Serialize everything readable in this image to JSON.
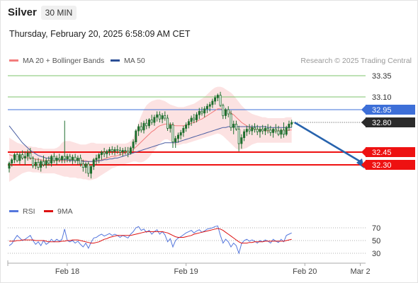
{
  "header": {
    "symbol": "Silver",
    "timeframe": "30 MIN",
    "datetime": "Thursday, February 20, 2025 6:58:09 AM CET"
  },
  "legend": {
    "ma20_bb": "MA 20 + Bollinger Bands",
    "ma50": "MA 50",
    "rsi": "RSI",
    "ma9": "9MA",
    "credit": "Research © 2025 Trading Central"
  },
  "colors": {
    "candle": "#1f6e2e",
    "ma20": "#f27c7c",
    "band_fill": "#fbd3d3",
    "ma50": "#4b5fa3",
    "level_green": "#7cc36b",
    "level_blue": "#3d6fd8",
    "level_red": "#ee1111",
    "last_price": "#2b2b2b",
    "arrow": "#2763ad",
    "rsi": "#5577dd",
    "rsi_ma": "#dd1111"
  },
  "chart_data": {
    "type": "candlestick",
    "price_axis": {
      "ylim": [
        32.0,
        33.5
      ],
      "ticks": [
        "33.35",
        "33.10",
        "32.95",
        "32.80",
        "32.45",
        "32.30"
      ]
    },
    "levels": [
      {
        "label": "33.35",
        "value": 33.35,
        "kind": "resistance"
      },
      {
        "label": "33.10",
        "value": 33.1,
        "kind": "resistance"
      },
      {
        "label": "32.95",
        "value": 32.95,
        "kind": "pivot"
      },
      {
        "label": "32.80",
        "value": 32.8,
        "kind": "last"
      },
      {
        "label": "32.45",
        "value": 32.45,
        "kind": "support"
      },
      {
        "label": "32.30",
        "value": 32.3,
        "kind": "support"
      }
    ],
    "x_labels": [
      "Feb 18",
      "Feb 19",
      "Feb 20",
      "Mar 2"
    ],
    "x_label_index": [
      22,
      67,
      112,
      133
    ],
    "candles": [
      [
        32.26,
        32.34,
        32.21,
        32.32
      ],
      [
        32.32,
        32.38,
        32.28,
        32.36
      ],
      [
        32.36,
        32.44,
        32.32,
        32.42
      ],
      [
        32.42,
        32.45,
        32.33,
        32.35
      ],
      [
        32.35,
        32.45,
        32.31,
        32.42
      ],
      [
        32.42,
        32.47,
        32.36,
        32.38
      ],
      [
        32.38,
        32.46,
        32.3,
        32.4
      ],
      [
        32.4,
        32.48,
        32.35,
        32.44
      ],
      [
        32.44,
        32.5,
        32.36,
        32.38
      ],
      [
        32.38,
        32.4,
        32.26,
        32.29
      ],
      [
        32.29,
        32.37,
        32.25,
        32.33
      ],
      [
        32.33,
        32.38,
        32.24,
        32.27
      ],
      [
        32.27,
        32.36,
        32.22,
        32.34
      ],
      [
        32.34,
        32.41,
        32.28,
        32.3
      ],
      [
        32.3,
        32.38,
        32.26,
        32.35
      ],
      [
        32.35,
        32.4,
        32.29,
        32.32
      ],
      [
        32.32,
        32.42,
        32.28,
        32.4
      ],
      [
        32.4,
        32.44,
        32.32,
        32.35
      ],
      [
        32.35,
        32.41,
        32.3,
        32.38
      ],
      [
        32.38,
        32.43,
        32.33,
        32.36
      ],
      [
        32.36,
        32.41,
        32.32,
        32.4
      ],
      [
        32.4,
        32.82,
        32.32,
        32.37
      ],
      [
        32.37,
        32.43,
        32.33,
        32.4
      ],
      [
        32.4,
        32.43,
        32.33,
        32.36
      ],
      [
        32.36,
        32.42,
        32.31,
        32.39
      ],
      [
        32.39,
        32.43,
        32.32,
        32.35
      ],
      [
        32.35,
        32.41,
        32.3,
        32.38
      ],
      [
        32.38,
        32.42,
        32.28,
        32.31
      ],
      [
        32.31,
        32.36,
        32.22,
        32.27
      ],
      [
        32.27,
        32.33,
        32.2,
        32.31
      ],
      [
        32.31,
        32.34,
        32.16,
        32.2
      ],
      [
        32.2,
        32.3,
        32.14,
        32.28
      ],
      [
        32.28,
        32.38,
        32.24,
        32.36
      ],
      [
        32.36,
        32.42,
        32.3,
        32.38
      ],
      [
        32.38,
        32.44,
        32.32,
        32.42
      ],
      [
        32.42,
        32.47,
        32.36,
        32.45
      ],
      [
        32.45,
        32.5,
        32.39,
        32.43
      ],
      [
        32.43,
        32.48,
        32.38,
        32.46
      ],
      [
        32.46,
        32.51,
        32.41,
        32.48
      ],
      [
        32.48,
        32.52,
        32.42,
        32.46
      ],
      [
        32.46,
        32.51,
        32.41,
        32.48
      ],
      [
        32.48,
        32.53,
        32.43,
        32.47
      ],
      [
        32.47,
        32.51,
        32.41,
        32.45
      ],
      [
        32.45,
        32.5,
        32.4,
        32.47
      ],
      [
        32.47,
        32.51,
        32.42,
        32.46
      ],
      [
        32.46,
        32.51,
        32.39,
        32.44
      ],
      [
        32.44,
        32.52,
        32.42,
        32.5
      ],
      [
        32.5,
        32.6,
        32.46,
        32.57
      ],
      [
        32.57,
        32.72,
        32.54,
        32.7
      ],
      [
        32.7,
        32.78,
        32.64,
        32.75
      ],
      [
        32.75,
        32.8,
        32.68,
        32.71
      ],
      [
        32.71,
        32.82,
        32.67,
        32.79
      ],
      [
        32.79,
        32.84,
        32.72,
        32.76
      ],
      [
        32.76,
        32.85,
        32.73,
        32.83
      ],
      [
        32.83,
        32.89,
        32.77,
        32.8
      ],
      [
        32.8,
        32.89,
        32.76,
        32.86
      ],
      [
        32.86,
        32.93,
        32.81,
        32.89
      ],
      [
        32.89,
        32.93,
        32.8,
        32.84
      ],
      [
        32.84,
        32.91,
        32.79,
        32.88
      ],
      [
        32.88,
        32.93,
        32.82,
        32.85
      ],
      [
        32.85,
        32.89,
        32.7,
        32.73
      ],
      [
        32.73,
        32.8,
        32.68,
        32.77
      ],
      [
        32.77,
        32.8,
        32.5,
        32.57
      ],
      [
        32.57,
        32.64,
        32.5,
        32.61
      ],
      [
        32.61,
        32.68,
        32.56,
        32.65
      ],
      [
        32.65,
        32.71,
        32.6,
        32.68
      ],
      [
        32.68,
        32.76,
        32.63,
        32.73
      ],
      [
        32.73,
        32.8,
        32.69,
        32.77
      ],
      [
        32.77,
        32.84,
        32.73,
        32.81
      ],
      [
        32.81,
        32.88,
        32.76,
        32.85
      ],
      [
        32.85,
        32.9,
        32.79,
        32.83
      ],
      [
        32.83,
        32.92,
        32.8,
        32.89
      ],
      [
        32.89,
        32.97,
        32.84,
        32.93
      ],
      [
        32.93,
        32.98,
        32.88,
        32.91
      ],
      [
        32.91,
        32.99,
        32.86,
        32.96
      ],
      [
        32.96,
        33.02,
        32.91,
        32.99
      ],
      [
        32.99,
        33.04,
        32.93,
        33.01
      ],
      [
        33.01,
        33.08,
        32.97,
        33.05
      ],
      [
        33.05,
        33.12,
        33.01,
        33.09
      ],
      [
        33.09,
        33.14,
        33.05,
        33.12
      ],
      [
        33.12,
        33.16,
        32.98,
        33.0
      ],
      [
        33.0,
        33.02,
        32.84,
        32.88
      ],
      [
        32.88,
        32.97,
        32.84,
        32.95
      ],
      [
        32.95,
        32.99,
        32.86,
        32.9
      ],
      [
        32.9,
        32.94,
        32.7,
        32.74
      ],
      [
        32.74,
        32.82,
        32.66,
        32.78
      ],
      [
        32.78,
        32.82,
        32.7,
        32.72
      ],
      [
        32.72,
        32.76,
        32.46,
        32.55
      ],
      [
        32.55,
        32.66,
        32.49,
        32.62
      ],
      [
        32.62,
        32.72,
        32.58,
        32.69
      ],
      [
        32.69,
        32.76,
        32.64,
        32.72
      ],
      [
        32.72,
        32.78,
        32.66,
        32.7
      ],
      [
        32.7,
        32.77,
        32.65,
        32.74
      ],
      [
        32.74,
        32.79,
        32.68,
        32.72
      ],
      [
        32.72,
        32.77,
        32.65,
        32.69
      ],
      [
        32.69,
        32.75,
        32.62,
        32.72
      ],
      [
        32.72,
        32.77,
        32.66,
        32.7
      ],
      [
        32.7,
        32.76,
        32.65,
        32.73
      ],
      [
        32.73,
        32.78,
        32.67,
        32.71
      ],
      [
        32.71,
        32.76,
        32.64,
        32.68
      ],
      [
        32.68,
        32.74,
        32.62,
        32.72
      ],
      [
        32.72,
        32.78,
        32.67,
        32.7
      ],
      [
        32.7,
        32.76,
        32.64,
        32.66
      ],
      [
        32.66,
        32.73,
        32.61,
        32.71
      ],
      [
        32.71,
        32.8,
        32.62,
        32.66
      ],
      [
        32.66,
        32.76,
        32.64,
        32.74
      ],
      [
        32.74,
        32.82,
        32.7,
        32.78
      ],
      [
        32.78,
        32.83,
        32.74,
        32.8
      ]
    ],
    "ma20": [
      32.42,
      32.41,
      32.4,
      32.4,
      32.39,
      32.39,
      32.39,
      32.38,
      32.38,
      32.37,
      32.37,
      32.36,
      32.36,
      32.35,
      32.35,
      32.35,
      32.35,
      32.35,
      32.35,
      32.35,
      32.35,
      32.35,
      32.35,
      32.36,
      32.36,
      32.36,
      32.36,
      32.36,
      32.35,
      32.35,
      32.34,
      32.34,
      32.34,
      32.34,
      32.35,
      32.36,
      32.37,
      32.38,
      32.39,
      32.4,
      32.4,
      32.41,
      32.42,
      32.43,
      32.44,
      32.45,
      32.46,
      32.48,
      32.51,
      32.54,
      32.57,
      32.6,
      32.63,
      32.66,
      32.69,
      32.71,
      32.74,
      32.76,
      32.77,
      32.78,
      32.78,
      32.78,
      32.77,
      32.76,
      32.76,
      32.76,
      32.76,
      32.77,
      32.78,
      32.79,
      32.8,
      32.81,
      32.83,
      32.84,
      32.86,
      32.88,
      32.9,
      32.92,
      32.94,
      32.96,
      32.96,
      32.95,
      32.94,
      32.93,
      32.91,
      32.89,
      32.86,
      32.83,
      32.8,
      32.78,
      32.76,
      32.74,
      32.73,
      32.72,
      32.71,
      32.71,
      32.71,
      32.7,
      32.7,
      32.7,
      32.7,
      32.7,
      32.7,
      32.7,
      32.7,
      32.7,
      32.71,
      32.71
    ],
    "band_upper": [
      32.62,
      32.6,
      32.58,
      32.56,
      32.55,
      32.54,
      32.53,
      32.52,
      32.52,
      32.51,
      32.51,
      32.5,
      32.5,
      32.49,
      32.49,
      32.49,
      32.49,
      32.49,
      32.5,
      32.52,
      32.56,
      32.58,
      32.58,
      32.58,
      32.57,
      32.56,
      32.55,
      32.54,
      32.54,
      32.54,
      32.55,
      32.56,
      32.56,
      32.55,
      32.55,
      32.55,
      32.55,
      32.55,
      32.55,
      32.55,
      32.55,
      32.55,
      32.55,
      32.55,
      32.55,
      32.56,
      32.58,
      32.62,
      32.7,
      32.8,
      32.88,
      32.95,
      33.0,
      33.03,
      33.05,
      33.06,
      33.07,
      33.07,
      33.06,
      33.05,
      33.03,
      33.01,
      33.0,
      32.99,
      32.98,
      32.98,
      32.98,
      32.99,
      33.0,
      33.01,
      33.02,
      33.04,
      33.06,
      33.08,
      33.1,
      33.13,
      33.16,
      33.19,
      33.21,
      33.22,
      33.22,
      33.21,
      33.19,
      33.17,
      33.15,
      33.12,
      33.08,
      33.04,
      33.0,
      32.97,
      32.94,
      32.92,
      32.9,
      32.89,
      32.88,
      32.87,
      32.86,
      32.86,
      32.85,
      32.85,
      32.85,
      32.85,
      32.85,
      32.85,
      32.85,
      32.86,
      32.86,
      32.86
    ],
    "band_lower": [
      32.1,
      32.12,
      32.14,
      32.16,
      32.18,
      32.2,
      32.21,
      32.22,
      32.22,
      32.21,
      32.21,
      32.21,
      32.2,
      32.2,
      32.2,
      32.2,
      32.2,
      32.2,
      32.19,
      32.18,
      32.17,
      32.16,
      32.16,
      32.15,
      32.15,
      32.15,
      32.14,
      32.14,
      32.13,
      32.13,
      32.12,
      32.12,
      32.13,
      32.14,
      32.16,
      32.18,
      32.2,
      32.22,
      32.24,
      32.26,
      32.27,
      32.28,
      32.29,
      32.3,
      32.31,
      32.32,
      32.33,
      32.34,
      32.34,
      32.33,
      32.33,
      32.34,
      32.36,
      32.39,
      32.43,
      32.47,
      32.51,
      32.55,
      32.58,
      32.6,
      32.6,
      32.58,
      32.55,
      32.53,
      32.53,
      32.54,
      32.55,
      32.55,
      32.56,
      32.57,
      32.58,
      32.59,
      32.6,
      32.61,
      32.62,
      32.63,
      32.64,
      32.65,
      32.66,
      32.67,
      32.66,
      32.64,
      32.61,
      32.58,
      32.55,
      32.52,
      32.49,
      32.48,
      32.48,
      32.49,
      32.5,
      32.52,
      32.54,
      32.55,
      32.56,
      32.56,
      32.56,
      32.56,
      32.56,
      32.56,
      32.56,
      32.56,
      32.56,
      32.56,
      32.56,
      32.56,
      32.56,
      32.56
    ],
    "ma50": [
      32.76,
      32.72,
      32.68,
      32.64,
      32.6,
      32.56,
      32.53,
      32.5,
      32.47,
      32.45,
      32.43,
      32.41,
      32.4,
      32.39,
      32.38,
      32.38,
      32.37,
      32.37,
      32.37,
      32.36,
      32.36,
      32.36,
      32.36,
      32.35,
      32.35,
      32.35,
      32.35,
      32.35,
      32.34,
      32.34,
      32.34,
      32.34,
      32.34,
      32.35,
      32.35,
      32.35,
      32.36,
      32.36,
      32.37,
      32.37,
      32.38,
      32.38,
      32.39,
      32.4,
      32.41,
      32.42,
      32.43,
      32.44,
      32.45,
      32.46,
      32.47,
      32.48,
      32.49,
      32.5,
      32.51,
      32.52,
      32.53,
      32.54,
      32.55,
      32.56,
      32.56,
      32.56,
      32.56,
      32.56,
      32.57,
      32.58,
      32.59,
      32.6,
      32.61,
      32.62,
      32.63,
      32.64,
      32.65,
      32.66,
      32.67,
      32.68,
      32.69,
      32.7,
      32.71,
      32.72,
      32.73,
      32.74,
      32.74,
      32.75,
      32.75,
      32.75,
      32.75,
      32.75,
      32.75,
      32.75,
      32.75,
      32.75,
      32.75,
      32.75,
      32.75,
      32.75,
      32.75,
      32.75,
      32.74,
      32.74,
      32.74,
      32.74,
      32.74,
      32.74,
      32.74,
      32.74,
      32.74,
      32.74
    ],
    "projection": {
      "from": 32.8,
      "to": 32.3
    },
    "rsi_axis": {
      "ylim": [
        20,
        80
      ],
      "ticks": [
        70,
        50,
        30
      ]
    },
    "rsi": [
      42,
      45,
      52,
      58,
      54,
      50,
      52,
      55,
      58,
      50,
      44,
      48,
      42,
      50,
      44,
      47,
      52,
      48,
      52,
      49,
      52,
      68,
      50,
      48,
      50,
      46,
      49,
      44,
      40,
      46,
      38,
      47,
      54,
      55,
      58,
      60,
      57,
      59,
      61,
      58,
      60,
      58,
      55,
      58,
      56,
      54,
      60,
      64,
      70,
      72,
      66,
      68,
      63,
      66,
      60,
      64,
      67,
      60,
      64,
      59,
      48,
      53,
      40,
      50,
      54,
      56,
      59,
      62,
      64,
      66,
      62,
      65,
      67,
      63,
      65,
      68,
      69,
      70,
      72,
      73,
      58,
      46,
      52,
      48,
      40,
      46,
      42,
      30,
      45,
      50,
      52,
      49,
      51,
      49,
      46,
      50,
      48,
      51,
      49,
      46,
      52,
      49,
      47,
      52,
      48,
      58,
      60,
      62
    ],
    "rsi_ma": [
      49,
      49,
      49,
      50,
      50,
      51,
      51,
      51,
      51,
      51,
      50,
      50,
      50,
      50,
      49,
      48,
      48,
      48,
      48,
      48,
      49,
      49,
      50,
      50,
      51,
      51,
      51,
      50,
      49,
      48,
      47,
      46,
      46,
      47,
      48,
      50,
      52,
      53,
      55,
      56,
      57,
      58,
      58,
      58,
      58,
      58,
      58,
      59,
      60,
      61,
      62,
      63,
      64,
      64,
      64,
      64,
      64,
      64,
      64,
      63,
      62,
      60,
      58,
      56,
      55,
      55,
      55,
      56,
      57,
      58,
      60,
      61,
      62,
      63,
      64,
      65,
      66,
      67,
      68,
      69,
      68,
      66,
      63,
      60,
      57,
      54,
      51,
      48,
      46,
      46,
      46,
      47,
      47,
      48,
      48,
      48,
      48,
      49,
      49,
      49,
      49,
      49,
      49,
      49,
      49,
      50,
      51,
      52
    ],
    "x_range": [
      0,
      135
    ]
  }
}
